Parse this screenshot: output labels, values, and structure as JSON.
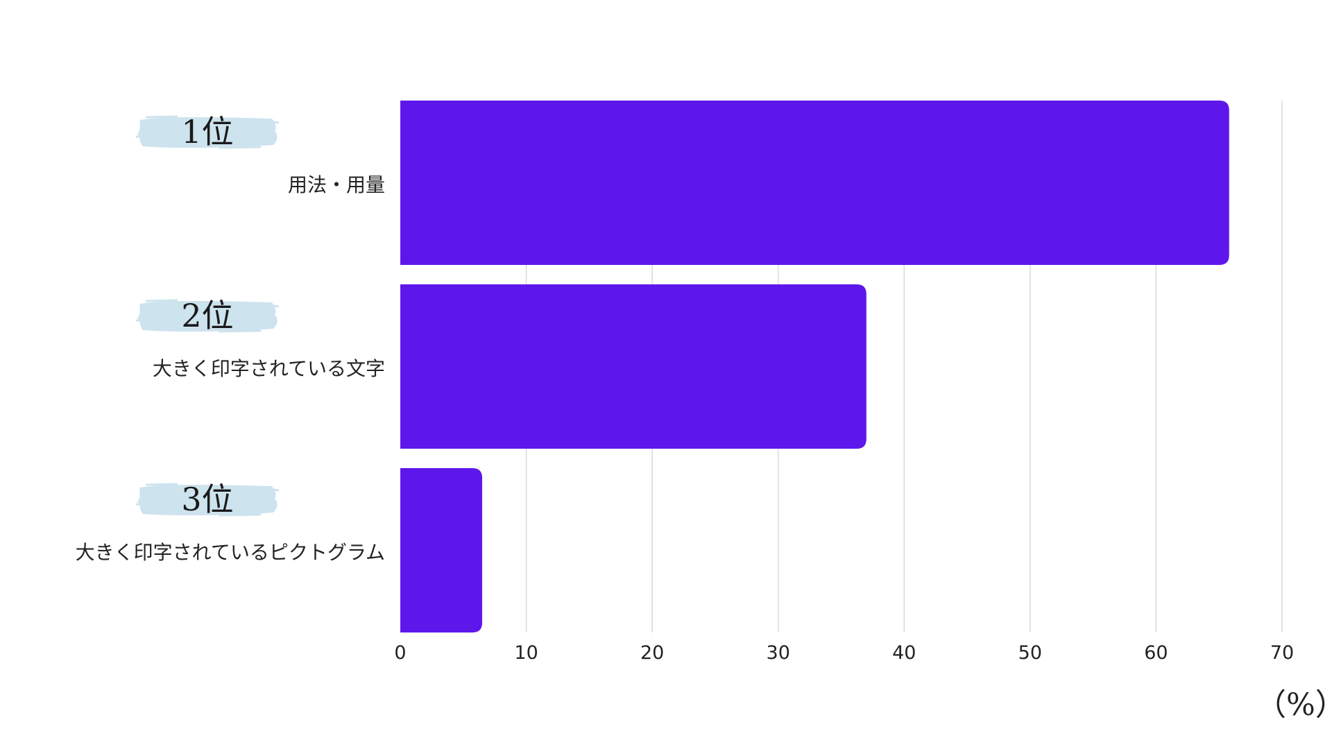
{
  "chart_data": {
    "type": "bar",
    "orientation": "horizontal",
    "categories": [
      "用法・用量",
      "大きく印字されている文字",
      "大きく印字されているピクトグラム"
    ],
    "ranks": [
      "1位",
      "2位",
      "3位"
    ],
    "values": [
      65.8,
      37.0,
      6.5
    ],
    "xticks": [
      "0",
      "10",
      "20",
      "30",
      "40",
      "50",
      "60",
      "70"
    ],
    "xlim": [
      0,
      70
    ],
    "unit": "（%）",
    "grid": "vertical",
    "bar_color": "#5e17eb",
    "badge_color": "#cde3ee"
  }
}
